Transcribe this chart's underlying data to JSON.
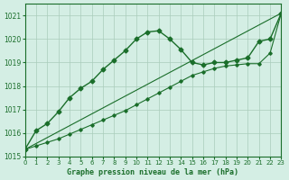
{
  "xlabel": "Graphe pression niveau de la mer (hPa)",
  "background_color": "#d4eee4",
  "grid_color": "#aaccbb",
  "line_color": "#1a6e2a",
  "xlim": [
    0,
    23
  ],
  "ylim": [
    1015,
    1021.5
  ],
  "yticks": [
    1015,
    1016,
    1017,
    1018,
    1019,
    1020,
    1021
  ],
  "xticks": [
    0,
    1,
    2,
    3,
    4,
    5,
    6,
    7,
    8,
    9,
    10,
    11,
    12,
    13,
    14,
    15,
    16,
    17,
    18,
    19,
    20,
    21,
    22,
    23
  ],
  "series1_x": [
    0,
    1,
    2,
    3,
    4,
    5,
    6,
    7,
    8,
    9,
    10,
    11,
    12,
    13,
    14,
    15,
    16,
    17,
    18,
    19,
    20,
    21,
    22,
    23
  ],
  "series1_y": [
    1015.3,
    1016.1,
    1016.4,
    1016.9,
    1017.5,
    1017.9,
    1018.2,
    1018.7,
    1019.1,
    1019.5,
    1020.0,
    1020.3,
    1020.35,
    1020.0,
    1019.55,
    1019.0,
    1018.9,
    1019.0,
    1019.0,
    1019.1,
    1019.2,
    1019.9,
    1020.0,
    1021.1
  ],
  "series2_x": [
    0,
    23
  ],
  "series2_y": [
    1015.3,
    1021.1
  ],
  "series3_x": [
    0,
    1,
    2,
    3,
    4,
    5,
    6,
    7,
    8,
    9,
    10,
    11,
    12,
    13,
    14,
    15,
    16,
    17,
    18,
    19,
    20,
    21,
    22,
    23
  ],
  "series3_y": [
    1015.3,
    1015.45,
    1015.6,
    1015.75,
    1015.95,
    1016.15,
    1016.35,
    1016.55,
    1016.75,
    1016.95,
    1017.2,
    1017.45,
    1017.7,
    1017.95,
    1018.2,
    1018.45,
    1018.6,
    1018.75,
    1018.85,
    1018.9,
    1018.95,
    1018.95,
    1019.4,
    1021.1
  ]
}
